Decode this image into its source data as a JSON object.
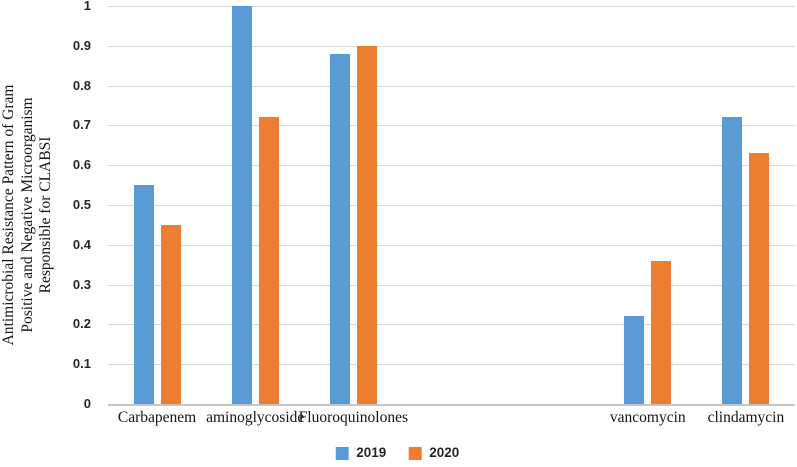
{
  "chart_data": {
    "type": "bar",
    "title": "",
    "xlabel": "",
    "ylabel": "Antimicrobial Resistance Pattern of Gram Positive and Negative Microorganism Responsible for CLABSI",
    "ylabel_lines": [
      "Antimicrobial Resistance Pattern of Gram",
      "Positive and Negative Microorganism",
      "Responsible for CLABSI"
    ],
    "categories": [
      "Carbapenem",
      "aminoglycoside",
      "Fluoroquinolones",
      "",
      "",
      "vancomycin",
      "clindamycin"
    ],
    "series": [
      {
        "name": "2019",
        "color": "#5B9BD5",
        "values": [
          0.55,
          1.0,
          0.88,
          null,
          null,
          0.22,
          0.72
        ]
      },
      {
        "name": "2020",
        "color": "#ED7D31",
        "values": [
          0.45,
          0.72,
          0.9,
          null,
          null,
          0.36,
          0.63
        ]
      }
    ],
    "ylim": [
      0,
      1
    ],
    "ytick_step": 0.1,
    "ytick_labels": [
      "1",
      "0.9",
      "0.8",
      "0.7",
      "0.6",
      "0.5",
      "0.4",
      "0.3",
      "0.2",
      "0.1",
      "0"
    ],
    "grid": "horizontal",
    "legend_position": "bottom",
    "colors": {
      "gridline": "#D9D9D9",
      "axis_line": "#C6C6C6",
      "tick_label": "#262626",
      "category_label": "#161616",
      "background": "#FFFFFF"
    }
  }
}
